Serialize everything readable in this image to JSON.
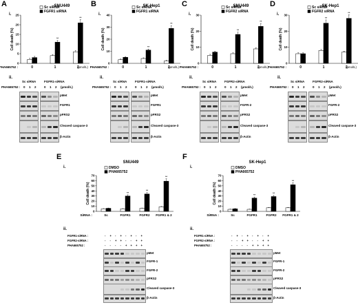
{
  "panels": [
    {
      "letter": "A",
      "title": "SNU449",
      "legend": [
        "Sc siRNA",
        "FGFR1 siRNA"
      ],
      "siRNA_headers": [
        "Sc siRNA",
        "FGFR1-siRNA"
      ],
      "blot_labels": [
        "pMet",
        "FGFR1",
        "pFRS2",
        "Cleaved caspase-3",
        "β-Actin"
      ]
    },
    {
      "letter": "B",
      "title": "SK-Hep1",
      "legend": [
        "Sc siRNA",
        "FGFR1 siRNA"
      ],
      "siRNA_headers": [
        "Sc siRNA",
        "FGFR1-siRNA"
      ],
      "blot_labels": [
        "pMet",
        "FGFR1",
        "pFRS2",
        "Cleaved caspase-3",
        "β-Actin"
      ]
    },
    {
      "letter": "C",
      "title": "SNU449",
      "legend": [
        "Sc siRNA",
        "FGFR2 siRNA"
      ],
      "siRNA_headers": [
        "Sc siRNA",
        "FGFR2-siRNA"
      ],
      "blot_labels": [
        "pMet",
        "FGFR-2",
        "pFRS2",
        "Cleaved caspase-3",
        "β-Actin"
      ]
    },
    {
      "letter": "D",
      "title": "SK-Hep1",
      "legend": [
        "Sc siRNA",
        "FGFR2 siRNA"
      ],
      "siRNA_headers": [
        "Sc siRNA",
        "FGFR2-siRNA"
      ],
      "blot_labels": [
        "pMet",
        "FGFR-2",
        "pFRS2",
        "Cleaved caspase-3",
        "β-Actin"
      ]
    },
    {
      "letter": "E",
      "title": "SNU449",
      "legend": [
        "DMSO",
        "PHA665752"
      ],
      "blot_labels": [
        "pMet",
        "FGFR-1",
        "FGFR-2",
        "pFRS2",
        "Cleaved caspase-3",
        "β-Actin"
      ]
    },
    {
      "letter": "F",
      "title": "SK-Hep1",
      "legend": [
        "DMSO",
        "PHA665752"
      ],
      "blot_labels": [
        "pMet",
        "FGFR-1",
        "FGFR-2",
        "pFRS2",
        "Cleaved caspase-3",
        "β-Actin"
      ]
    }
  ],
  "common": {
    "sub_i": "i.",
    "sub_ii": "ii.",
    "ylabel": "Cell death (%)",
    "pha_label": "PHA665752 :",
    "unit": "(μmol/L)",
    "doses": [
      "0",
      "1",
      "2"
    ],
    "sirna_label": "SiRNA :",
    "ef_categories": [
      "Sc",
      "FGFR1",
      "FGFR2",
      "FGFR1 & 2"
    ],
    "fgfr1_row": "FGFR1-siRNA :",
    "fgfr2_row": "FGFR2-siRNA :",
    "pha_row": "PHA665752 :",
    "fgfr1_signs": [
      "-",
      "+",
      "-",
      "+",
      "-",
      "+",
      "-",
      "+"
    ],
    "fgfr2_signs": [
      "-",
      "-",
      "+",
      "+",
      "-",
      "-",
      "+",
      "+"
    ],
    "pha_signs": [
      "-",
      "-",
      "-",
      "-",
      "+",
      "+",
      "+",
      "+"
    ],
    "star": "**",
    "star_single": "*"
  },
  "chart_data": [
    {
      "panel": "A",
      "type": "bar",
      "categories": [
        "0",
        "1",
        "2"
      ],
      "series": [
        {
          "name": "Sc siRNA",
          "values": [
            2,
            4,
            6
          ]
        },
        {
          "name": "FGFR1 siRNA",
          "values": [
            3,
            11,
            21
          ]
        }
      ],
      "ylabel": "Cell death (%)",
      "ylim": [
        0,
        25
      ],
      "yticks": [
        0,
        5,
        10,
        15,
        20,
        25
      ]
    },
    {
      "panel": "B",
      "type": "bar",
      "categories": [
        "0",
        "1",
        "2"
      ],
      "series": [
        {
          "name": "Sc siRNA",
          "values": [
            3,
            4,
            2
          ]
        },
        {
          "name": "FGFR1 siRNA",
          "values": [
            5,
            11,
            29
          ]
        }
      ],
      "ylabel": "Cell death (%)",
      "ylim": [
        0,
        40
      ],
      "yticks": [
        0,
        10,
        20,
        30,
        40
      ]
    },
    {
      "panel": "C",
      "type": "bar",
      "categories": [
        "0",
        "1",
        "2"
      ],
      "series": [
        {
          "name": "Sc siRNA",
          "values": [
            5,
            6,
            9
          ]
        },
        {
          "name": "FGFR2 siRNA",
          "values": [
            7,
            18,
            23
          ]
        }
      ],
      "ylabel": "Cell death (%)",
      "ylim": [
        0,
        30
      ],
      "yticks": [
        0,
        10,
        20,
        30
      ]
    },
    {
      "panel": "D",
      "type": "bar",
      "categories": [
        "0",
        "1",
        "2"
      ],
      "series": [
        {
          "name": "Sc siRNA",
          "values": [
            6,
            8,
            7
          ]
        },
        {
          "name": "FGFR2 siRNA",
          "values": [
            6,
            25,
            28
          ]
        }
      ],
      "ylabel": "Cell death (%)",
      "ylim": [
        0,
        30
      ],
      "yticks": [
        0,
        10,
        20,
        30
      ]
    },
    {
      "panel": "E",
      "type": "bar",
      "categories": [
        "Sc",
        "FGFR1",
        "FGFR2",
        "FGFR1 & 2"
      ],
      "series": [
        {
          "name": "DMSO",
          "values": [
            5,
            5,
            6,
            9
          ]
        },
        {
          "name": "PHA665752",
          "values": [
            6,
            30,
            34,
            59
          ]
        }
      ],
      "ylabel": "Cell death (%)",
      "ylim": [
        0,
        70
      ],
      "yticks": [
        0,
        10,
        20,
        30,
        40,
        50,
        60,
        70
      ]
    },
    {
      "panel": "F",
      "type": "bar",
      "categories": [
        "Sc",
        "FGFR1",
        "FGFR2",
        "FGFR1 & 2"
      ],
      "series": [
        {
          "name": "DMSO",
          "values": [
            4,
            4,
            7,
            7
          ]
        },
        {
          "name": "PHA665752",
          "values": [
            5,
            26,
            29,
            52
          ]
        }
      ],
      "ylabel": "Cell death (%)",
      "ylim": [
        0,
        70
      ],
      "yticks": [
        0,
        10,
        20,
        30,
        40,
        50,
        60,
        70
      ]
    }
  ]
}
